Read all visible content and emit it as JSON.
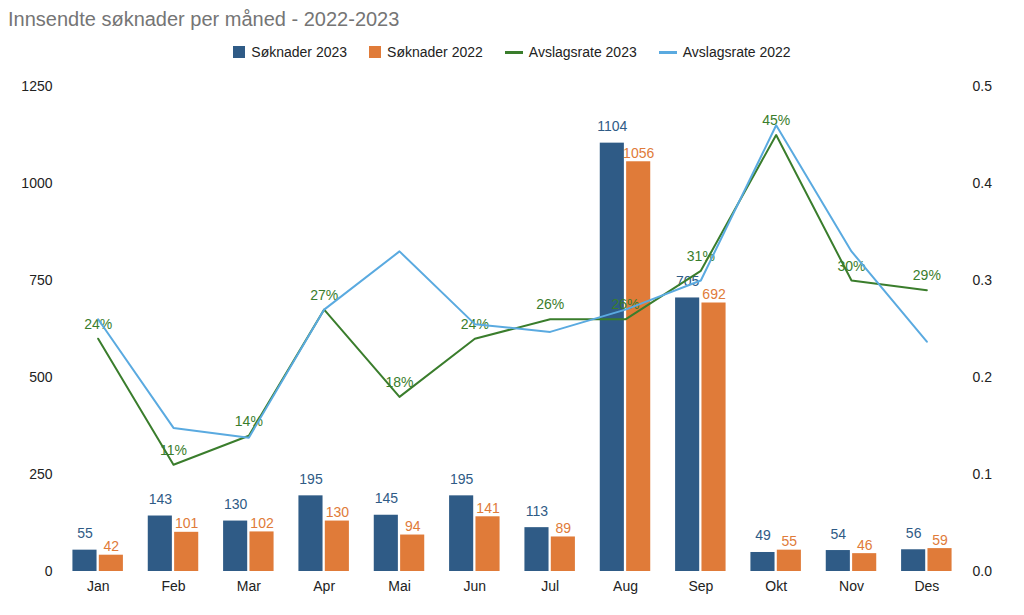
{
  "chart_data": {
    "type": "bar",
    "title": "Innsendte søknader per måned - 2022-2023",
    "categories": [
      "Jan",
      "Feb",
      "Mar",
      "Apr",
      "Mai",
      "Jun",
      "Jul",
      "Aug",
      "Sep",
      "Okt",
      "Nov",
      "Des"
    ],
    "series": [
      {
        "name": "Søknader 2023",
        "type": "bar",
        "color": "#2f5b86",
        "data_labels": true,
        "values": [
          55,
          143,
          130,
          195,
          145,
          195,
          113,
          1104,
          705,
          49,
          54,
          56
        ]
      },
      {
        "name": "Søknader 2022",
        "type": "bar",
        "color": "#e07b39",
        "data_labels": true,
        "values": [
          42,
          101,
          102,
          130,
          94,
          141,
          89,
          1056,
          692,
          55,
          46,
          59
        ]
      },
      {
        "name": "Avslagsrate 2023",
        "type": "line",
        "axis": "y2",
        "color": "#3a7d2c",
        "data_labels": true,
        "values": [
          0.24,
          0.11,
          0.14,
          0.27,
          0.18,
          0.24,
          0.26,
          0.26,
          0.31,
          0.45,
          0.3,
          0.29
        ],
        "value_labels": [
          "24%",
          "11%",
          "14%",
          "27%",
          "18%",
          "24%",
          "26%",
          "26%",
          "31%",
          "45%",
          "30%",
          "29%"
        ]
      },
      {
        "name": "Avslagsrate 2022",
        "type": "line",
        "axis": "y2",
        "color": "#5aaae0",
        "data_labels": false,
        "values": [
          0.26,
          0.148,
          0.138,
          0.27,
          0.33,
          0.255,
          0.247,
          0.27,
          0.3,
          0.46,
          0.33,
          0.237
        ]
      }
    ],
    "ylim": [
      0,
      1250
    ],
    "yticks": [
      0,
      250,
      500,
      750,
      1000,
      1250
    ],
    "y2lim": [
      0,
      0.5
    ],
    "y2ticks": [
      {
        "value": 0,
        "label": "0.0"
      },
      0.1,
      0.2,
      0.3,
      0.4,
      0.5
    ],
    "legend": "top",
    "grid": false
  }
}
